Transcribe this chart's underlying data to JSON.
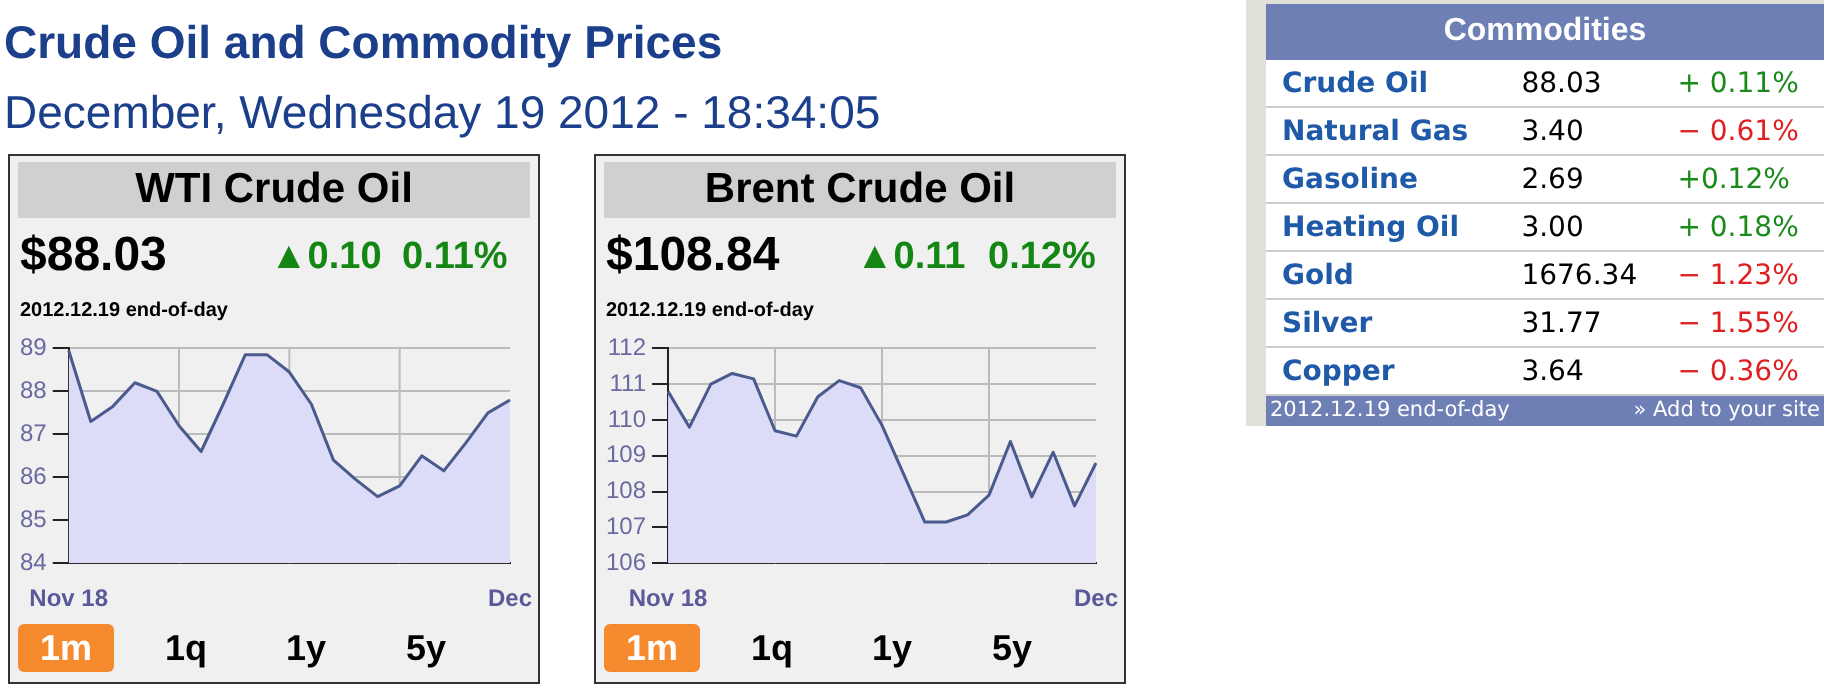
{
  "chart_data": [
    {
      "type": "other",
      "title": "Crude Oil and Commodity Prices",
      "subtitle": "December, Wednesday 19 2012 - 18:34:05"
    },
    {
      "type": "area",
      "title": "WTI Crude Oil",
      "annotations": [
        "$88.03",
        "▲0.10",
        "0.11%",
        "2012.12.19 end-of-day",
        "1m",
        "1q",
        "1y",
        "5y"
      ],
      "categories": [
        "Nov 18",
        null,
        null,
        null,
        null,
        null,
        null,
        null,
        null,
        null,
        null,
        null,
        null,
        null,
        null,
        null,
        null,
        null,
        null,
        null,
        "Dec"
      ],
      "values": [
        88.95,
        87.3,
        87.65,
        88.2,
        88.0,
        87.2,
        86.6,
        87.7,
        88.85,
        88.85,
        88.45,
        87.7,
        86.4,
        85.95,
        85.55,
        85.8,
        86.5,
        86.15,
        86.8,
        87.5,
        87.8
      ],
      "color": "#4a5a8c",
      "ylim": [
        84,
        89
      ],
      "yticks": [
        84,
        85,
        86,
        87,
        88,
        89
      ],
      "grid": true
    },
    {
      "type": "area",
      "title": "Brent Crude Oil",
      "annotations": [
        "$108.84",
        "▲0.11",
        "0.12%",
        "2012.12.19 end-of-day",
        "1m",
        "1q",
        "1y",
        "5y"
      ],
      "categories": [
        "Nov 18",
        null,
        null,
        null,
        null,
        null,
        null,
        null,
        null,
        null,
        null,
        null,
        null,
        null,
        null,
        null,
        null,
        null,
        null,
        null,
        "Dec"
      ],
      "values": [
        110.8,
        109.8,
        111.0,
        111.3,
        111.15,
        109.7,
        109.55,
        110.65,
        111.1,
        110.9,
        109.85,
        108.5,
        107.15,
        107.15,
        107.35,
        107.9,
        109.4,
        107.85,
        109.1,
        107.6,
        108.8
      ],
      "color": "#4a5a8c",
      "ylim": [
        106,
        112
      ],
      "yticks": [
        106,
        107,
        108,
        109,
        110,
        111,
        112
      ],
      "grid": true
    },
    {
      "type": "other",
      "title": "Commodities",
      "annotations": [
        "Crude Oil",
        "88.03",
        "+ 0.11%",
        "Natural Gas",
        "3.40",
        "− 0.61%",
        "Gasoline",
        "2.69",
        "+0.12%",
        "Heating Oil",
        "3.00",
        "+ 0.18%",
        "Gold",
        "1676.34",
        "− 1.23%",
        "Silver",
        "31.77",
        "− 1.55%",
        "Copper",
        "3.64",
        "− 0.36%",
        "2012.12.19 end-of-day",
        "» Add to your site"
      ],
      "colors": [
        "#1a8a1a",
        "#e02020",
        "#1a8a1a",
        "#1a8a1a",
        "#e02020",
        "#e02020",
        "#e02020"
      ]
    }
  ]
}
